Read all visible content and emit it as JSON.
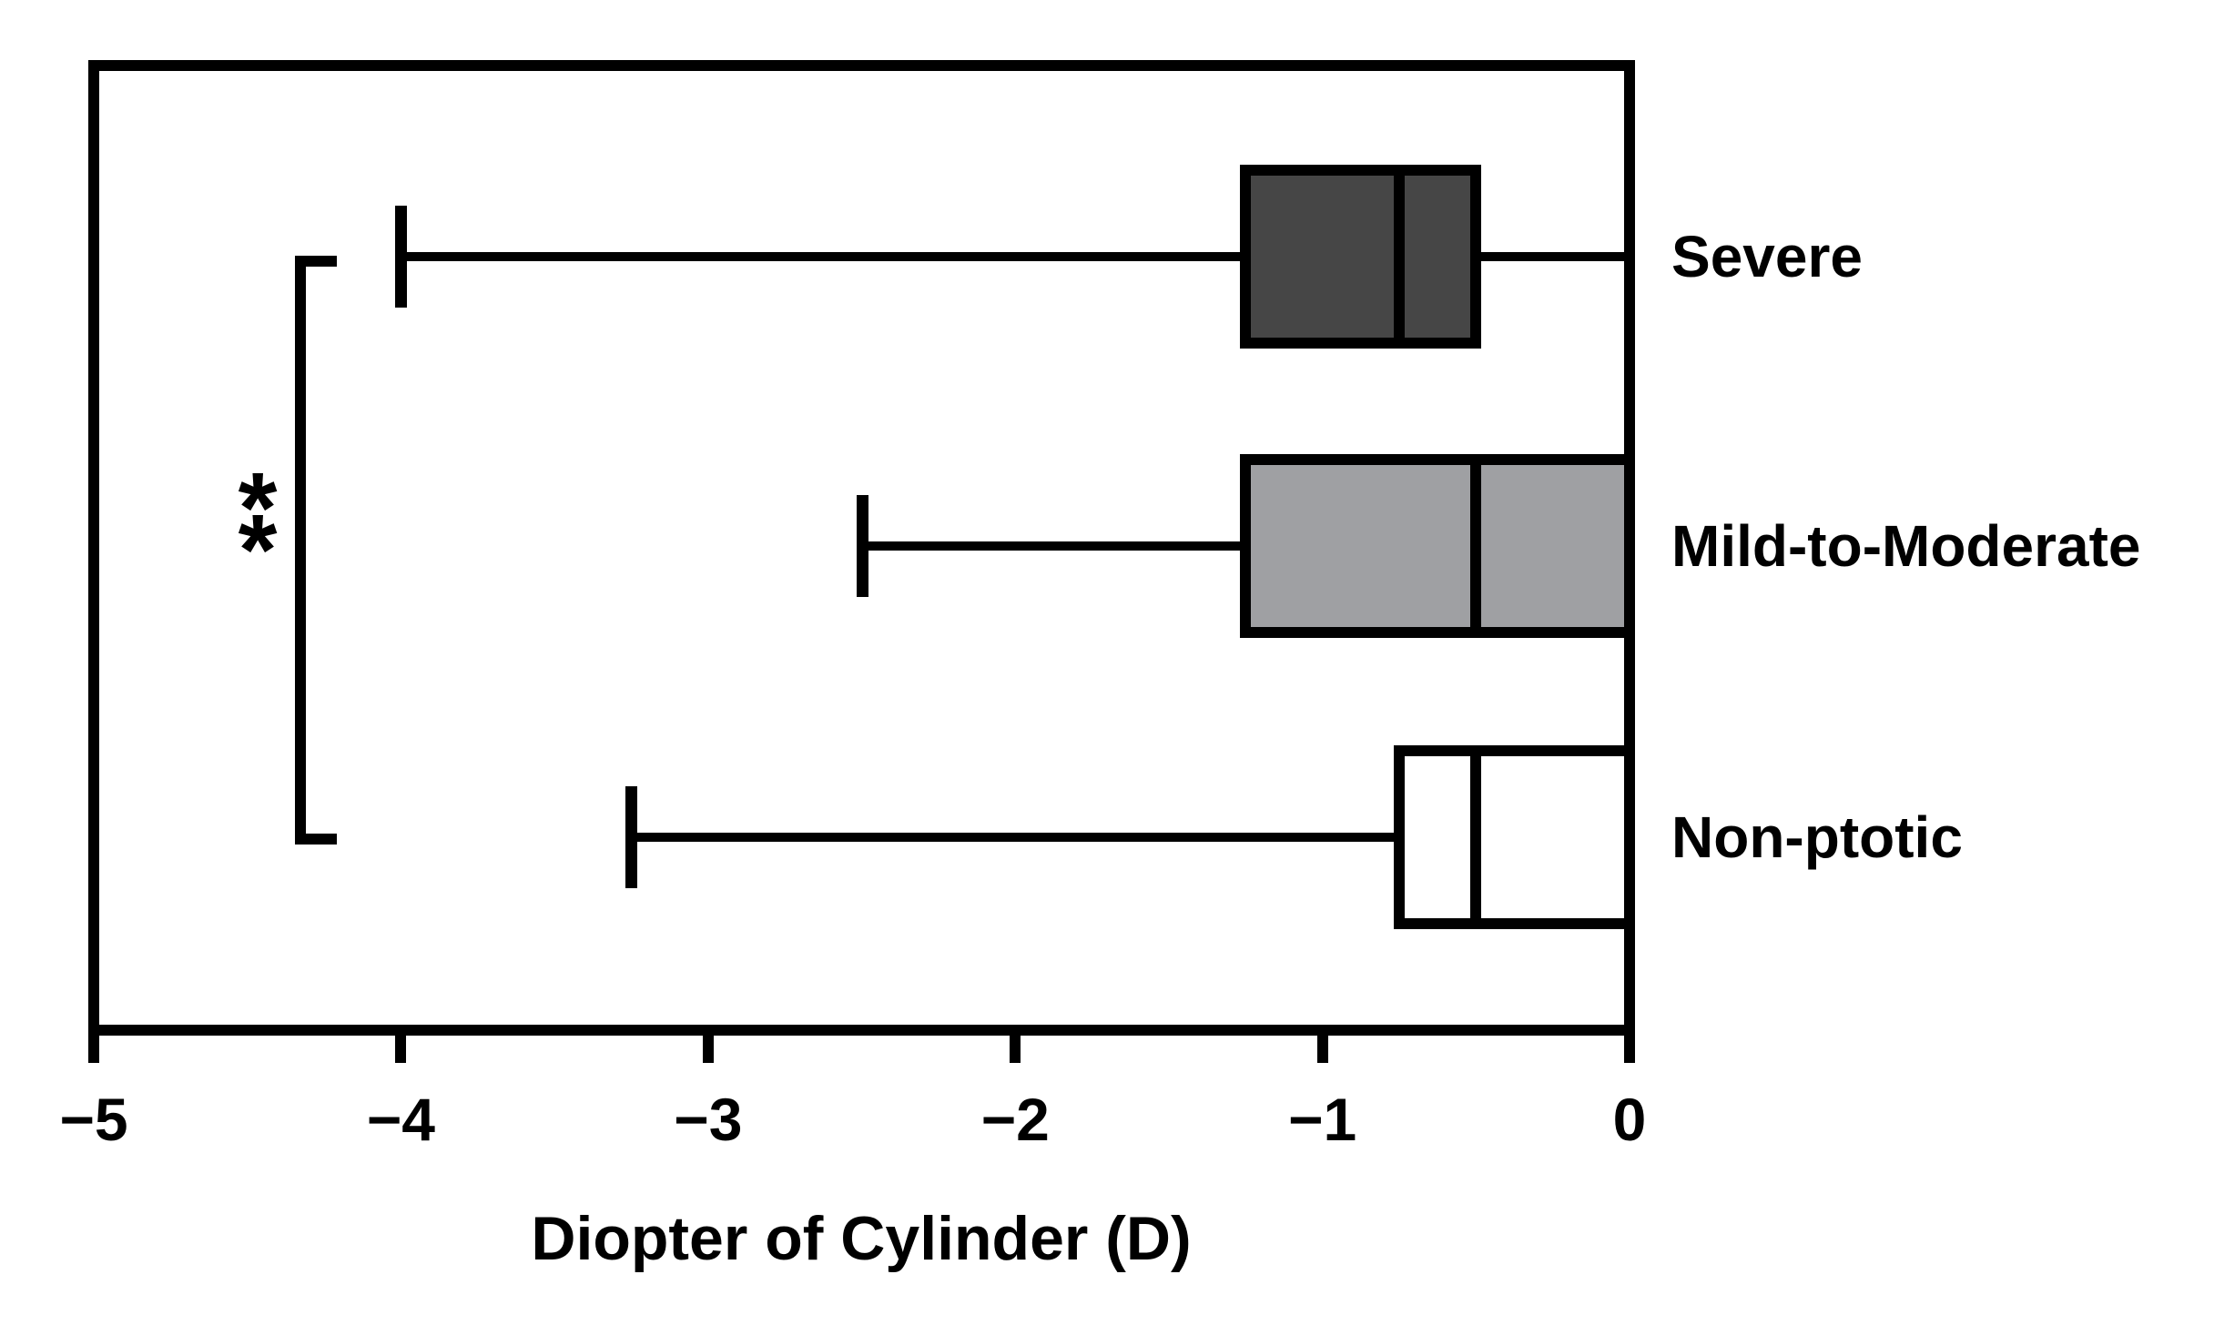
{
  "chart_data": {
    "type": "boxplot",
    "orientation": "horizontal",
    "title": "",
    "xlabel": "Diopter of Cylinder (D)",
    "x_axis": {
      "min": -5,
      "max": 0,
      "ticks": [
        -5,
        -4,
        -3,
        -2,
        -1,
        0
      ],
      "tick_labels": [
        "−5",
        "−4",
        "−3",
        "−2",
        "−1",
        "0"
      ],
      "grid": false
    },
    "groups": [
      {
        "label": "Severe",
        "min": -4.0,
        "q1": -1.25,
        "median": -0.75,
        "q3": -0.5,
        "max": 0,
        "fill": "#464646"
      },
      {
        "label": "Mild-to-Moderate",
        "min": -2.5,
        "q1": -1.25,
        "median": -0.5,
        "q3": 0,
        "max": 0,
        "fill": "#9fa0a3"
      },
      {
        "label": "Non-ptotic",
        "min": -3.25,
        "q1": -0.75,
        "median": -0.5,
        "q3": 0,
        "max": 0,
        "fill": "#ffffff"
      }
    ],
    "significance": {
      "label": "**",
      "between": [
        "Severe",
        "Non-ptotic"
      ]
    },
    "colors": {
      "line": "#000000",
      "severe_fill": "#464646",
      "mild_fill": "#9fa0a3",
      "nonptotic_fill": "#ffffff",
      "background": "#ffffff"
    },
    "legend": null
  }
}
